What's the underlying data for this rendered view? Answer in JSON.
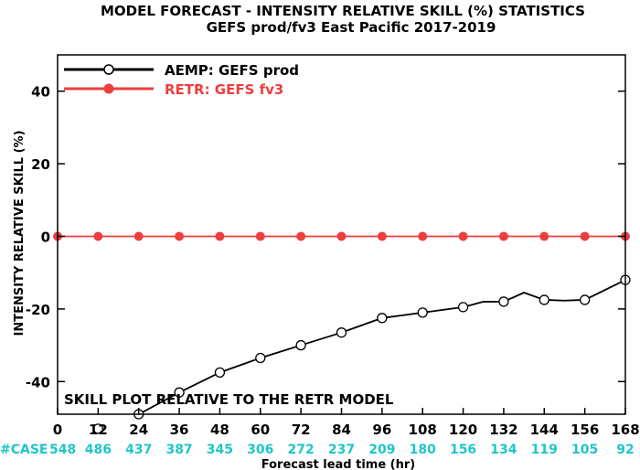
{
  "chart_data": {
    "type": "line",
    "title": "MODEL FORECAST - INTENSITY RELATIVE SKILL (%) STATISTICS",
    "subtitle": "GEFS prod/fv3 East Pacific 2017-2019",
    "xlabel": "Forecast lead time (hr)",
    "ylabel": "INTENSITY RELATIVE SKILL (%)",
    "xlim": [
      0,
      168
    ],
    "ylim": [
      -49,
      50
    ],
    "x_ticks": [
      0,
      12,
      24,
      36,
      48,
      60,
      72,
      84,
      96,
      108,
      120,
      132,
      144,
      156,
      168
    ],
    "y_ticks": [
      -40,
      -20,
      0,
      20,
      40
    ],
    "legend_position": "top-left",
    "annotation": "SKILL PLOT RELATIVE TO THE RETR MODEL",
    "series": [
      {
        "name": "AEMP: GEFS prod",
        "color": "#000000",
        "x": [
          12,
          24,
          36,
          48,
          60,
          72,
          84,
          96,
          108,
          120,
          126,
          132,
          138,
          144,
          150,
          156,
          168
        ],
        "y": [
          -53,
          -49,
          -43,
          -37.5,
          -33.5,
          -30,
          -26.5,
          -22.5,
          -21,
          -19.5,
          -18,
          -18,
          -15.5,
          -17.5,
          -17.7,
          -17.5,
          -12
        ],
        "marker_x": [
          12,
          24,
          36,
          48,
          60,
          72,
          84,
          96,
          108,
          120,
          132,
          144,
          156,
          168
        ]
      },
      {
        "name": "RETR: GEFS fv3",
        "color": "#ee3e3e",
        "x": [
          0,
          12,
          24,
          36,
          48,
          60,
          72,
          84,
          96,
          108,
          120,
          132,
          144,
          156,
          168
        ],
        "y": [
          0,
          0,
          0,
          0,
          0,
          0,
          0,
          0,
          0,
          0,
          0,
          0,
          0,
          0,
          0
        ],
        "marker_x": [
          0,
          12,
          24,
          36,
          48,
          60,
          72,
          84,
          96,
          108,
          120,
          132,
          144,
          156,
          168
        ]
      }
    ],
    "case_counts": {
      "label": "#CASE",
      "color": "#1fc6c6",
      "x": [
        0,
        12,
        24,
        36,
        48,
        60,
        72,
        84,
        96,
        108,
        120,
        132,
        144,
        156,
        168
      ],
      "values": [
        548,
        486,
        437,
        387,
        345,
        306,
        272,
        237,
        209,
        180,
        156,
        134,
        119,
        105,
        92
      ]
    }
  }
}
